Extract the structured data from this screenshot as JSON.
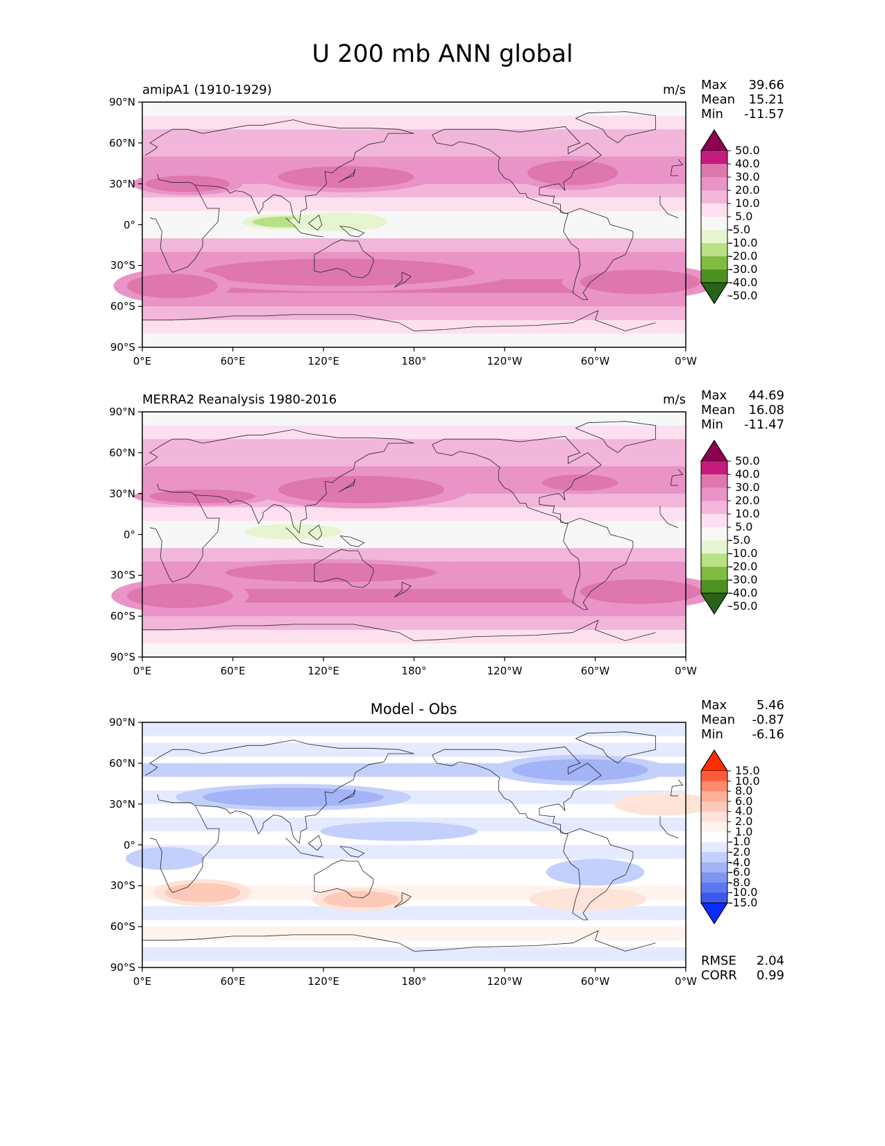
{
  "figure": {
    "title": "U 200 mb ANN global"
  },
  "panels": [
    {
      "left_title": "amipA1 (1910-1929)",
      "center_title": "",
      "units": "m/s",
      "stats": [
        {
          "label": "Max",
          "value": "39.66"
        },
        {
          "label": "Mean",
          "value": "15.21"
        },
        {
          "label": "Min",
          "value": "-11.57"
        }
      ]
    },
    {
      "left_title": "MERRA2 Reanalysis 1980-2016",
      "center_title": "",
      "units": "m/s",
      "stats": [
        {
          "label": "Max",
          "value": "44.69"
        },
        {
          "label": "Mean",
          "value": "16.08"
        },
        {
          "label": "Min",
          "value": "-11.47"
        }
      ]
    },
    {
      "left_title": "",
      "center_title": "Model - Obs",
      "units": "",
      "stats": [
        {
          "label": "Max",
          "value": "5.46"
        },
        {
          "label": "Mean",
          "value": "-0.87"
        },
        {
          "label": "Min",
          "value": "-6.16"
        }
      ],
      "footer_stats": [
        {
          "label": "RMSE",
          "value": "2.04"
        },
        {
          "label": "CORR",
          "value": "0.99"
        }
      ]
    }
  ],
  "chart_data": [
    {
      "type": "heatmap",
      "title": "amipA1 (1910-1929)",
      "units": "m/s",
      "xlabel": "",
      "ylabel": "",
      "x_ticks": [
        "0°E",
        "60°E",
        "120°E",
        "180°",
        "120°W",
        "60°W",
        "0°W"
      ],
      "y_ticks": [
        "90°N",
        "60°N",
        "30°N",
        "0°",
        "30°S",
        "60°S",
        "90°S"
      ],
      "xlim": [
        0,
        360
      ],
      "ylim": [
        -90,
        90
      ],
      "colorbar": {
        "levels": [
          "50.0",
          "40.0",
          "30.0",
          "20.0",
          "10.0",
          "5.0",
          "-5.0",
          "-10.0",
          "-20.0",
          "-30.0",
          "-40.0",
          "-50.0"
        ],
        "colors": [
          "#8e0152",
          "#c51b7d",
          "#de77ae",
          "#e993c6",
          "#f1b6da",
          "#fde0ef",
          "#f7f7f7",
          "#e6f5d0",
          "#b8e186",
          "#7fbc41",
          "#4d9221",
          "#276419"
        ]
      },
      "features": [
        {
          "lon": 135,
          "lat": 35,
          "value": 35,
          "w": 45,
          "h": 8
        },
        {
          "lon": 30,
          "lat": 30,
          "value": 30,
          "w": 28,
          "h": 6
        },
        {
          "lon": 285,
          "lat": 38,
          "value": 35,
          "w": 30,
          "h": 9
        },
        {
          "lon": 130,
          "lat": -35,
          "value": 30,
          "w": 90,
          "h": 10
        },
        {
          "lon": 330,
          "lat": -42,
          "value": 30,
          "w": 40,
          "h": 9
        },
        {
          "lon": 20,
          "lat": -45,
          "value": 30,
          "w": 30,
          "h": 9
        },
        {
          "lon": 95,
          "lat": 2,
          "value": -12,
          "w": 22,
          "h": 4
        },
        {
          "lon": 130,
          "lat": 2,
          "value": -8,
          "w": 25,
          "h": 5
        }
      ]
    },
    {
      "type": "heatmap",
      "title": "MERRA2 Reanalysis 1980-2016",
      "units": "m/s",
      "xlabel": "",
      "ylabel": "",
      "x_ticks": [
        "0°E",
        "60°E",
        "120°E",
        "180°",
        "120°W",
        "60°W",
        "0°W"
      ],
      "y_ticks": [
        "90°N",
        "60°N",
        "30°N",
        "0°",
        "30°S",
        "60°S",
        "90°S"
      ],
      "xlim": [
        0,
        360
      ],
      "ylim": [
        -90,
        90
      ],
      "colorbar": {
        "levels": [
          "50.0",
          "40.0",
          "30.0",
          "20.0",
          "10.0",
          "5.0",
          "-5.0",
          "-10.0",
          "-20.0",
          "-30.0",
          "-40.0",
          "-50.0"
        ],
        "colors": [
          "#8e0152",
          "#c51b7d",
          "#de77ae",
          "#e993c6",
          "#f1b6da",
          "#fde0ef",
          "#f7f7f7",
          "#e6f5d0",
          "#b8e186",
          "#7fbc41",
          "#4d9221",
          "#276419"
        ]
      },
      "features": [
        {
          "lon": 135,
          "lat": 35,
          "value": 42,
          "w": 28,
          "h": 6
        },
        {
          "lon": 145,
          "lat": 33,
          "value": 32,
          "w": 55,
          "h": 10
        },
        {
          "lon": 40,
          "lat": 28,
          "value": 30,
          "w": 35,
          "h": 5
        },
        {
          "lon": 290,
          "lat": 38,
          "value": 30,
          "w": 25,
          "h": 6
        },
        {
          "lon": 125,
          "lat": -28,
          "value": 30,
          "w": 70,
          "h": 7
        },
        {
          "lon": 330,
          "lat": -42,
          "value": 30,
          "w": 40,
          "h": 9
        },
        {
          "lon": 25,
          "lat": -45,
          "value": 30,
          "w": 35,
          "h": 9
        },
        {
          "lon": 100,
          "lat": 2,
          "value": -10,
          "w": 25,
          "h": 4
        }
      ]
    },
    {
      "type": "heatmap",
      "title": "Model - Obs",
      "units": "",
      "xlabel": "",
      "ylabel": "",
      "x_ticks": [
        "0°E",
        "60°E",
        "120°E",
        "180°",
        "120°W",
        "60°W",
        "0°W"
      ],
      "y_ticks": [
        "90°N",
        "60°N",
        "30°N",
        "0°",
        "30°S",
        "60°S",
        "90°S"
      ],
      "xlim": [
        0,
        360
      ],
      "ylim": [
        -90,
        90
      ],
      "colorbar": {
        "levels": [
          "15.0",
          "10.0",
          "8.0",
          "6.0",
          "4.0",
          "2.0",
          "1.0",
          "-1.0",
          "-2.0",
          "-4.0",
          "-6.0",
          "-8.0",
          "-10.0",
          "-15.0"
        ],
        "colors": [
          "#ff2d00",
          "#ff5a3a",
          "#fe8a6e",
          "#fdae98",
          "#fdc9b8",
          "#fee3d8",
          "#fff3ee",
          "#ffffff",
          "#e4eaff",
          "#c3d0fb",
          "#a2b4f6",
          "#7f95f2",
          "#5c77f0",
          "#3a58ee",
          "#0a2dff"
        ]
      },
      "features": [
        {
          "lon": 100,
          "lat": 35,
          "value": -5,
          "w": 60,
          "h": 7
        },
        {
          "lon": 290,
          "lat": 55,
          "value": -5,
          "w": 45,
          "h": 8
        },
        {
          "lon": 345,
          "lat": 30,
          "value": 3,
          "w": 25,
          "h": 6
        },
        {
          "lon": 40,
          "lat": -35,
          "value": 4,
          "w": 25,
          "h": 7
        },
        {
          "lon": 145,
          "lat": -40,
          "value": 4,
          "w": 25,
          "h": 6
        },
        {
          "lon": 295,
          "lat": -40,
          "value": 3,
          "w": 30,
          "h": 6
        },
        {
          "lon": 300,
          "lat": -20,
          "value": -4,
          "w": 25,
          "h": 7
        },
        {
          "lon": 170,
          "lat": 10,
          "value": -3,
          "w": 40,
          "h": 5
        },
        {
          "lon": 15,
          "lat": -10,
          "value": -4,
          "w": 20,
          "h": 6
        }
      ]
    }
  ]
}
